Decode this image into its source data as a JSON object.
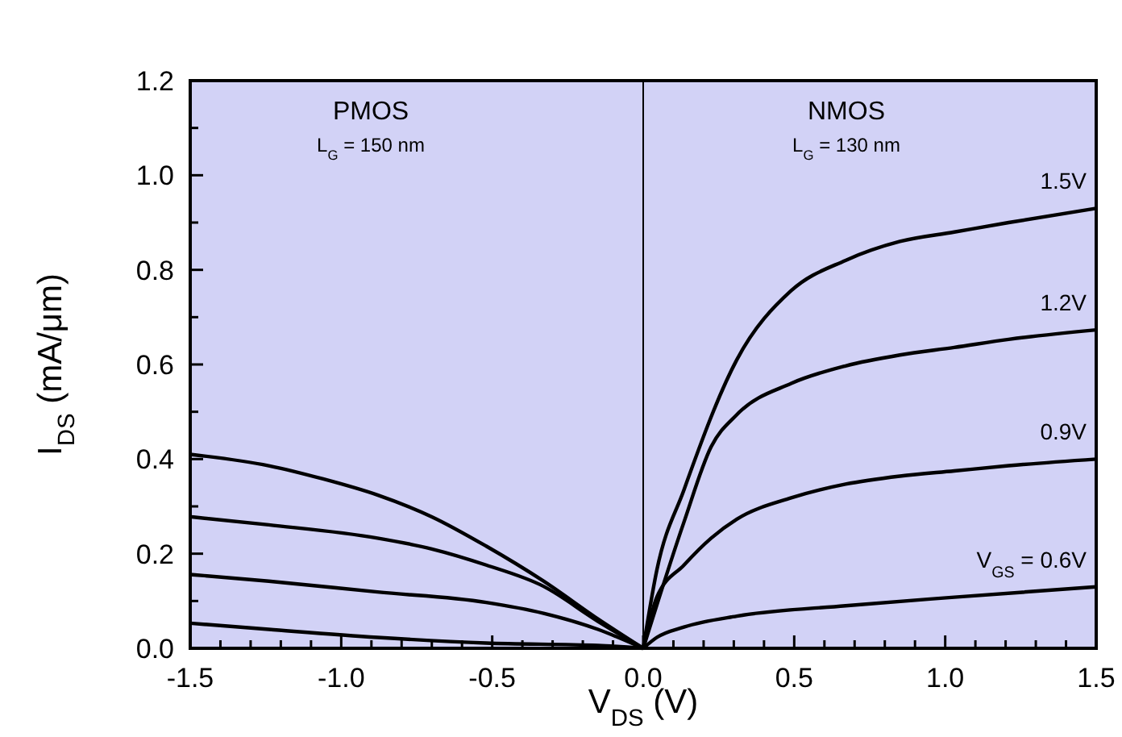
{
  "chart_data": {
    "type": "line",
    "xlabel": "V$_{DS}$ (V)",
    "ylabel": "I$_{DS}$ (mA/μm)",
    "xlim": [
      -1.5,
      1.5
    ],
    "ylim": [
      0,
      1.2
    ],
    "xticks": [
      {
        "value": -1.5,
        "label": "-1.5"
      },
      {
        "value": -1.4,
        "label": null
      },
      {
        "value": -1.3,
        "label": null
      },
      {
        "value": -1.2,
        "label": null
      },
      {
        "value": -1.1,
        "label": null
      },
      {
        "value": -1.0,
        "label": "-1.0"
      },
      {
        "value": -0.9,
        "label": null
      },
      {
        "value": -0.8,
        "label": null
      },
      {
        "value": -0.7,
        "label": null
      },
      {
        "value": -0.6,
        "label": null
      },
      {
        "value": -0.5,
        "label": "-0.5"
      },
      {
        "value": -0.4,
        "label": null
      },
      {
        "value": -0.3,
        "label": null
      },
      {
        "value": -0.2,
        "label": null
      },
      {
        "value": -0.1,
        "label": null
      },
      {
        "value": 0,
        "label": "0.0"
      },
      {
        "value": 0.1,
        "label": null
      },
      {
        "value": 0.2,
        "label": null
      },
      {
        "value": 0.3,
        "label": null
      },
      {
        "value": 0.4,
        "label": null
      },
      {
        "value": 0.5,
        "label": "0.5"
      },
      {
        "value": 0.6,
        "label": null
      },
      {
        "value": 0.7,
        "label": null
      },
      {
        "value": 0.8,
        "label": null
      },
      {
        "value": 0.9,
        "label": null
      },
      {
        "value": 1.0,
        "label": "1.0"
      },
      {
        "value": 1.1,
        "label": null
      },
      {
        "value": 1.2,
        "label": null
      },
      {
        "value": 1.3,
        "label": null
      },
      {
        "value": 1.4,
        "label": null
      },
      {
        "value": 1.5,
        "label": "1.5"
      }
    ],
    "yticks": [
      {
        "value": 0,
        "label": "0.0"
      },
      {
        "value": 0.1,
        "label": null
      },
      {
        "value": 0.2,
        "label": "0.2"
      },
      {
        "value": 0.3,
        "label": null
      },
      {
        "value": 0.4,
        "label": "0.4"
      },
      {
        "value": 0.5,
        "label": null
      },
      {
        "value": 0.6,
        "label": "0.6"
      },
      {
        "value": 0.7,
        "label": null
      },
      {
        "value": 0.8,
        "label": "0.8"
      },
      {
        "value": 0.9,
        "label": null
      },
      {
        "value": 1.0,
        "label": "1.0"
      },
      {
        "value": 1.1,
        "label": null
      },
      {
        "value": 1.2,
        "label": "1.2"
      }
    ],
    "grid": false,
    "line_style": "solid",
    "ref_lines": [
      {
        "axis": "x",
        "value": 0,
        "color": "#000000"
      }
    ],
    "annotations": [
      "PMOS",
      "L$_{G}$ = 150 nm",
      "NMOS",
      "L$_{G}$ = 130 nm"
    ],
    "series": [
      {
        "color": "#000000",
        "x": [
          -1.5,
          -1.24,
          -1.06,
          -0.88,
          -0.7,
          -0.52,
          -0.33,
          -0.15,
          0
        ],
        "values": [
          0.41,
          0.386,
          0.358,
          0.324,
          0.278,
          0.216,
          0.142,
          0.062,
          0
        ]
      },
      {
        "color": "#000000",
        "x": [
          -1.5,
          -1.24,
          -0.88,
          -0.7,
          -0.52,
          -0.33,
          -0.15,
          0
        ],
        "values": [
          0.278,
          0.261,
          0.233,
          0.21,
          0.176,
          0.131,
          0.057,
          0
        ]
      },
      {
        "color": "#000000",
        "x": [
          -1.5,
          -1.24,
          -0.88,
          -0.52,
          -0.33,
          -0.15,
          0
        ],
        "values": [
          0.156,
          0.142,
          0.119,
          0.097,
          0.074,
          0.04,
          0
        ]
      },
      {
        "color": "#000000",
        "x": [
          -1.5,
          -1.24,
          -0.88,
          -0.52,
          -0.15,
          0
        ],
        "values": [
          0.053,
          0.04,
          0.023,
          0.011,
          0.006,
          0
        ]
      },
      {
        "name": "1.5V",
        "color": "#000000",
        "x": [
          0,
          0.045,
          0.135,
          0.31,
          0.49,
          0.67,
          0.85,
          1.03,
          1.21,
          1.5
        ],
        "values": [
          0,
          0.165,
          0.335,
          0.61,
          0.756,
          0.82,
          0.86,
          0.88,
          0.9,
          0.93
        ]
      },
      {
        "name": "1.2V",
        "color": "#000000",
        "x": [
          0,
          0.135,
          0.225,
          0.31,
          0.49,
          0.67,
          0.85,
          1.03,
          1.21,
          1.5
        ],
        "values": [
          0,
          0.267,
          0.426,
          0.494,
          0.56,
          0.597,
          0.62,
          0.636,
          0.653,
          0.673
        ]
      },
      {
        "name": "0.9V",
        "color": "#000000",
        "x": [
          0,
          0.045,
          0.135,
          0.225,
          0.31,
          0.49,
          0.67,
          0.85,
          1.03,
          1.21,
          1.5
        ],
        "values": [
          0,
          0.108,
          0.176,
          0.233,
          0.273,
          0.318,
          0.347,
          0.364,
          0.375,
          0.386,
          0.4
        ]
      },
      {
        "name": "V$_{GS}$ = 0.6V",
        "color": "#000000",
        "x": [
          0,
          0.045,
          0.135,
          0.31,
          0.67,
          1.03,
          1.5
        ],
        "values": [
          0,
          0.023,
          0.045,
          0.068,
          0.09,
          0.108,
          0.13
        ]
      }
    ]
  }
}
